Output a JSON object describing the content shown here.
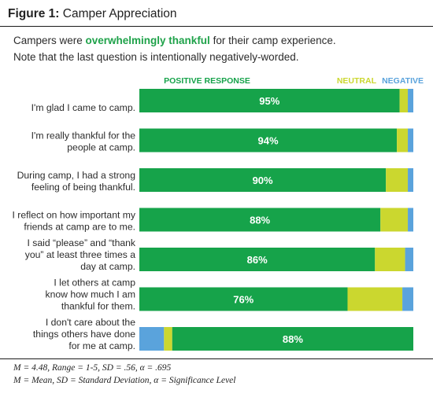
{
  "figure": {
    "label": "Figure 1:",
    "title": "Camper Appreciation"
  },
  "subtitle": {
    "line1_before": "Campers were ",
    "line1_highlight": "overwhelmingly thankful",
    "line1_after": " for their camp experience.",
    "line2": "Note that the last question is intentionally negatively-worded."
  },
  "colors": {
    "positive": "#16a34a",
    "neutral": "#cbd72f",
    "negative": "#5aa3dc",
    "highlight_text": "#1fa24a"
  },
  "chart_data": {
    "type": "bar",
    "orientation": "horizontal",
    "stacked": true,
    "normalized": "percent",
    "legend": [
      "POSITIVE RESPONSE",
      "NEUTRAL",
      "NEGATIVE"
    ],
    "legend_placement": "top",
    "categories": [
      [
        "I'm glad I came to camp."
      ],
      [
        "I'm really thankful for the",
        "people at camp."
      ],
      [
        "During camp, I had a strong",
        "feeling of being thankful."
      ],
      [
        "I reflect on how important my",
        "friends at camp are to me."
      ],
      [
        "I said “please” and “thank",
        "you” at least three times a",
        "day at camp."
      ],
      [
        "I let others at camp",
        "know how much I am",
        "thankful for them."
      ],
      [
        "I don't care about the",
        "things others have done",
        "for me at camp."
      ]
    ],
    "series": [
      {
        "name": "POSITIVE RESPONSE",
        "values": [
          95,
          94,
          90,
          88,
          86,
          76,
          88
        ]
      },
      {
        "name": "NEUTRAL",
        "values": [
          3,
          4,
          8,
          10,
          11,
          20,
          3
        ]
      },
      {
        "name": "NEGATIVE",
        "values": [
          2,
          2,
          2,
          2,
          3,
          4,
          9
        ]
      }
    ],
    "data_labels": [
      "95%",
      "94%",
      "90%",
      "88%",
      "86%",
      "76%",
      "88%"
    ],
    "reverse_order_rows": [
      6
    ],
    "xlim": [
      0,
      100
    ],
    "grid": false
  },
  "notes": {
    "line1": "M = 4.48, Range = 1-5, SD = .56, α = .695",
    "line2": "M = Mean, SD = Standard Deviation, α = Significance Level"
  }
}
